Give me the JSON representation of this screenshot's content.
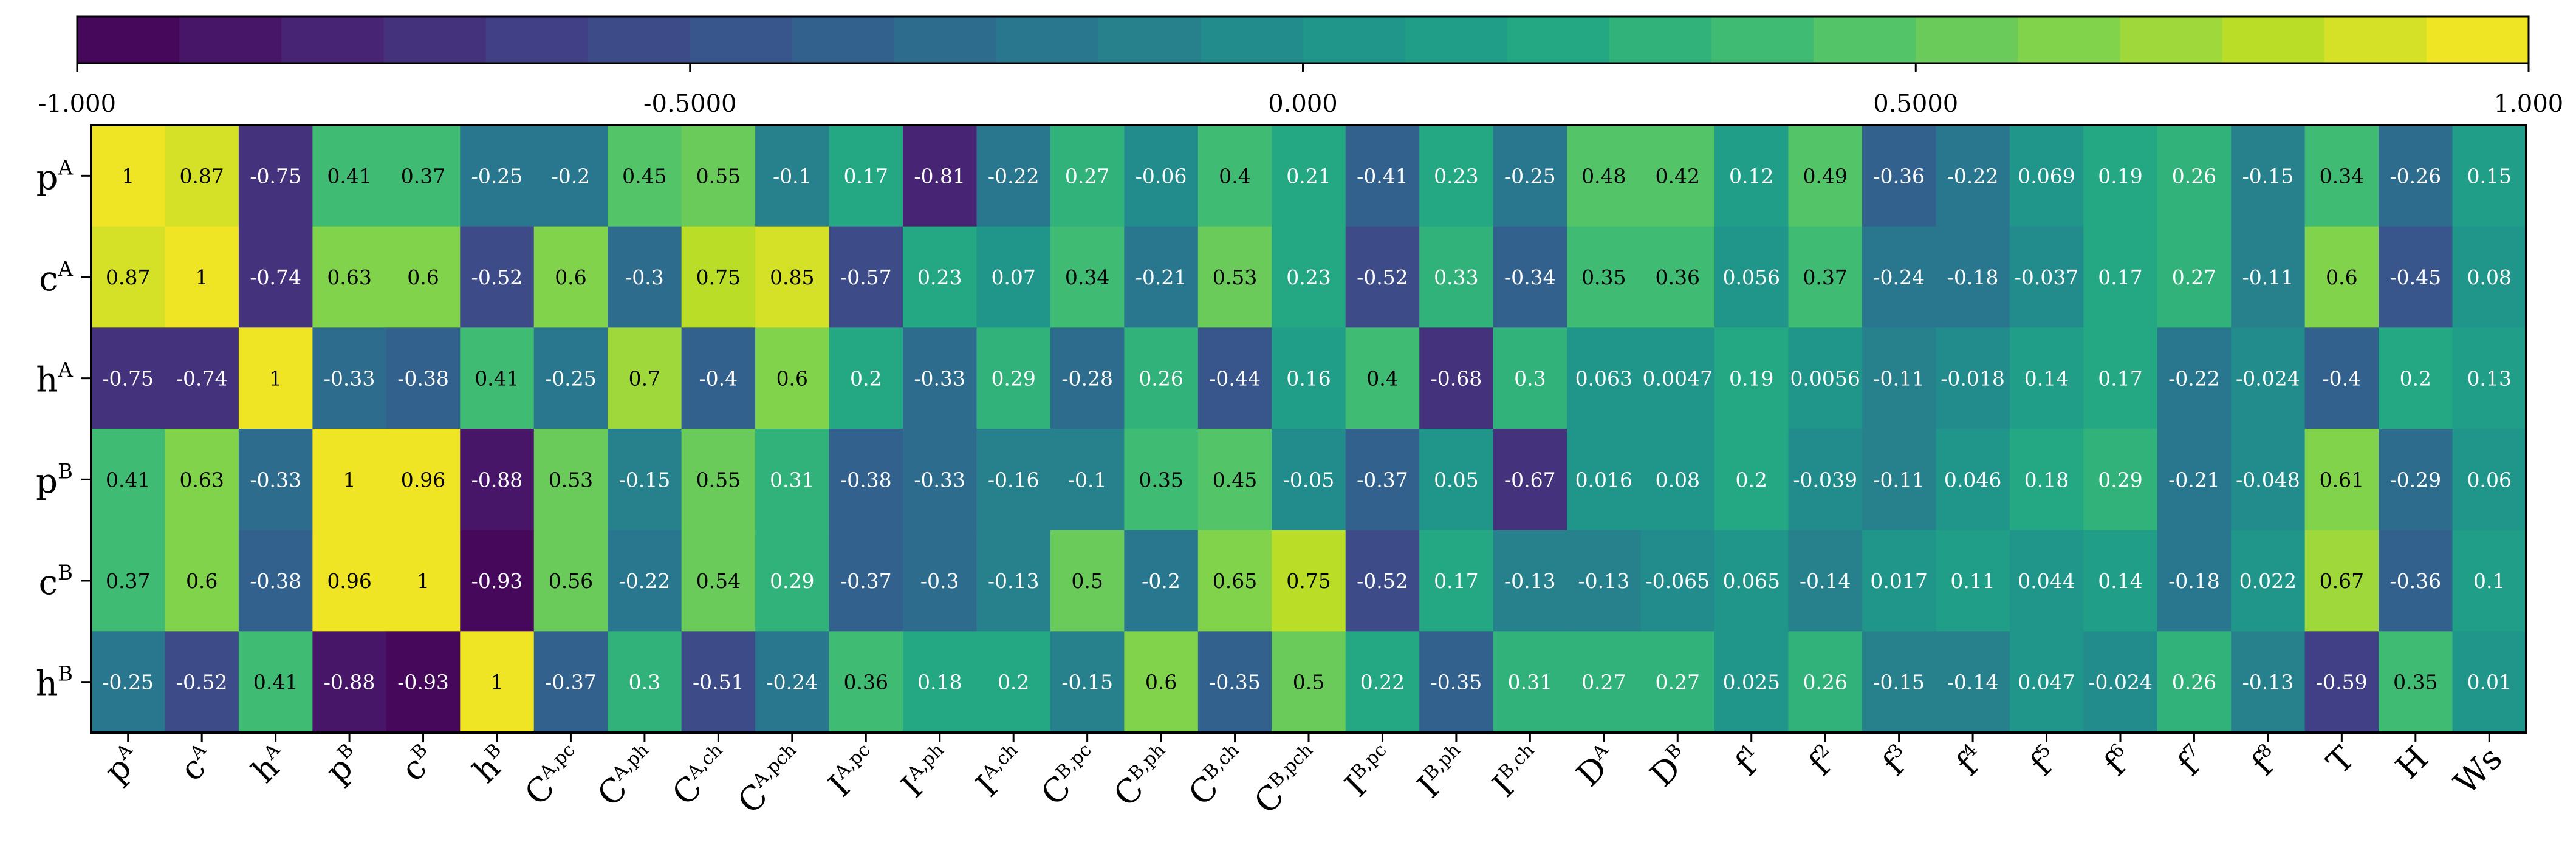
{
  "chart_data": {
    "type": "heatmap",
    "title": "",
    "colormap": "viridis",
    "vmin": -1.0,
    "vmax": 1.0,
    "colorbar": {
      "orientation": "horizontal",
      "position": "top",
      "tick_values": [
        -1.0,
        -0.5,
        0.0,
        0.5,
        1.0
      ],
      "tick_labels": [
        "-1.000",
        "-0.5000",
        "0.000",
        "0.5000",
        "1.000"
      ],
      "num_bins": 24
    },
    "rows": [
      "p^A",
      "c^A",
      "h^A",
      "p^B",
      "c^B",
      "h^B"
    ],
    "columns": [
      "p^A",
      "c^A",
      "h^A",
      "p^B",
      "c^B",
      "h^B",
      "C^A,pc",
      "C^A,ph",
      "C^A,ch",
      "C^A,pch",
      "I^A,pc",
      "I^A,ph",
      "I^A,ch",
      "C^B,pc",
      "C^B,ph",
      "C^B,ch",
      "C^B,pch",
      "I^B,pc",
      "I^B,ph",
      "I^B,ch",
      "D^A",
      "D^B",
      "f^1",
      "f^2",
      "f^3",
      "f^4",
      "f^5",
      "f^6",
      "f^7",
      "f^8",
      "T",
      "H",
      "Ws"
    ],
    "row_labels": [
      {
        "base": "p",
        "sup": "A"
      },
      {
        "base": "c",
        "sup": "A"
      },
      {
        "base": "h",
        "sup": "A"
      },
      {
        "base": "p",
        "sup": "B"
      },
      {
        "base": "c",
        "sup": "B"
      },
      {
        "base": "h",
        "sup": "B"
      }
    ],
    "column_labels": [
      {
        "base": "p",
        "sup": "A"
      },
      {
        "base": "c",
        "sup": "A"
      },
      {
        "base": "h",
        "sup": "A"
      },
      {
        "base": "p",
        "sup": "B"
      },
      {
        "base": "c",
        "sup": "B"
      },
      {
        "base": "h",
        "sup": "B"
      },
      {
        "base": "C",
        "sup": "A,pc"
      },
      {
        "base": "C",
        "sup": "A,ph"
      },
      {
        "base": "C",
        "sup": "A,ch"
      },
      {
        "base": "C",
        "sup": "A,pch"
      },
      {
        "base": "I",
        "sup": "A,pc"
      },
      {
        "base": "I",
        "sup": "A,ph"
      },
      {
        "base": "I",
        "sup": "A,ch"
      },
      {
        "base": "C",
        "sup": "B,pc"
      },
      {
        "base": "C",
        "sup": "B,ph"
      },
      {
        "base": "C",
        "sup": "B,ch"
      },
      {
        "base": "C",
        "sup": "B,pch"
      },
      {
        "base": "I",
        "sup": "B,pc"
      },
      {
        "base": "I",
        "sup": "B,ph"
      },
      {
        "base": "I",
        "sup": "B,ch"
      },
      {
        "base": "D",
        "sup": "A"
      },
      {
        "base": "D",
        "sup": "B"
      },
      {
        "base": "f",
        "sup": "1"
      },
      {
        "base": "f",
        "sup": "2"
      },
      {
        "base": "f",
        "sup": "3"
      },
      {
        "base": "f",
        "sup": "4"
      },
      {
        "base": "f",
        "sup": "5"
      },
      {
        "base": "f",
        "sup": "6"
      },
      {
        "base": "f",
        "sup": "7"
      },
      {
        "base": "f",
        "sup": "8"
      },
      {
        "base": "T",
        "sup": ""
      },
      {
        "base": "H",
        "sup": ""
      },
      {
        "base": "Ws",
        "sup": ""
      }
    ],
    "values": [
      [
        1,
        0.87,
        -0.75,
        0.41,
        0.37,
        -0.25,
        -0.2,
        0.45,
        0.55,
        -0.1,
        0.17,
        -0.81,
        -0.22,
        0.27,
        -0.06,
        0.4,
        0.21,
        -0.41,
        0.23,
        -0.25,
        0.48,
        0.42,
        0.12,
        0.49,
        -0.36,
        -0.22,
        0.069,
        0.19,
        0.26,
        -0.15,
        0.34,
        -0.26,
        0.15
      ],
      [
        0.87,
        1,
        -0.74,
        0.63,
        0.6,
        -0.52,
        0.6,
        -0.3,
        0.75,
        0.85,
        -0.57,
        0.23,
        0.07,
        0.34,
        -0.21,
        0.53,
        0.23,
        -0.52,
        0.33,
        -0.34,
        0.35,
        0.36,
        0.056,
        0.37,
        -0.24,
        -0.18,
        -0.037,
        0.17,
        0.27,
        -0.11,
        0.6,
        -0.45,
        0.08
      ],
      [
        -0.75,
        -0.74,
        1,
        -0.33,
        -0.38,
        0.41,
        -0.25,
        0.7,
        -0.4,
        0.6,
        0.2,
        -0.33,
        0.29,
        -0.28,
        0.26,
        -0.44,
        0.16,
        0.4,
        -0.68,
        0.3,
        0.063,
        0.0047,
        0.19,
        0.0056,
        -0.11,
        -0.018,
        0.14,
        0.17,
        -0.22,
        -0.024,
        -0.4,
        0.2,
        0.13
      ],
      [
        0.41,
        0.63,
        -0.33,
        1,
        0.96,
        -0.88,
        0.53,
        -0.15,
        0.55,
        0.31,
        -0.38,
        -0.33,
        -0.16,
        -0.1,
        0.35,
        0.45,
        -0.05,
        -0.37,
        0.05,
        -0.67,
        0.016,
        0.08,
        0.2,
        -0.039,
        -0.11,
        0.046,
        0.18,
        0.29,
        -0.21,
        -0.048,
        0.61,
        -0.29,
        0.06
      ],
      [
        0.37,
        0.6,
        -0.38,
        0.96,
        1,
        -0.93,
        0.56,
        -0.22,
        0.54,
        0.29,
        -0.37,
        -0.3,
        -0.13,
        0.5,
        -0.2,
        0.65,
        0.75,
        -0.52,
        0.17,
        -0.13,
        -0.13,
        -0.065,
        0.065,
        -0.14,
        0.017,
        0.11,
        0.044,
        0.14,
        -0.18,
        0.022,
        0.67,
        -0.36,
        0.1
      ],
      [
        -0.25,
        -0.52,
        0.41,
        -0.88,
        -0.93,
        1,
        -0.37,
        0.3,
        -0.51,
        -0.24,
        0.36,
        0.18,
        0.2,
        -0.15,
        0.6,
        -0.35,
        0.5,
        0.22,
        -0.35,
        0.31,
        0.27,
        0.27,
        0.025,
        0.26,
        -0.15,
        -0.14,
        0.047,
        -0.024,
        0.26,
        -0.13,
        -0.59,
        0.35,
        0.01
      ]
    ]
  }
}
